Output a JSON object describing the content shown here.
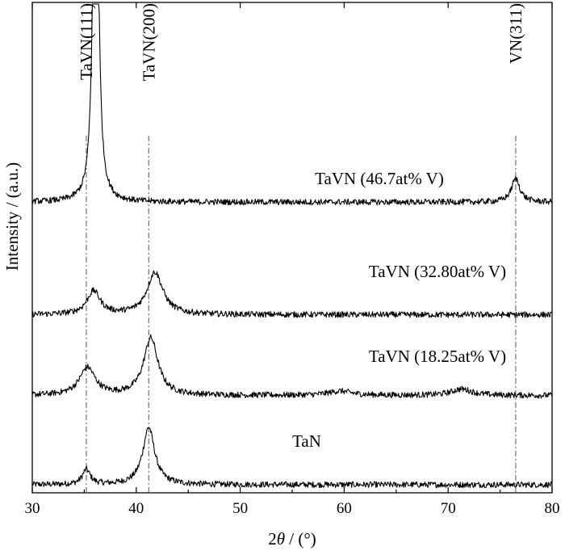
{
  "chart_data": {
    "type": "line",
    "xlabel_prefix": "2",
    "xlabel_symbol": "θ",
    "xlabel_suffix": " / (°)",
    "ylabel": "Intensity / (a.u.)",
    "xlim": [
      30,
      80
    ],
    "x_ticks": [
      30,
      40,
      50,
      60,
      70,
      80
    ],
    "y_ticks_shown": false,
    "grid": false,
    "legend": "none",
    "series": [
      {
        "name": "TaN",
        "label": "TaN",
        "offset": 0.0,
        "peaks": [
          {
            "x": 35.2,
            "height": 0.07,
            "width": 0.5
          },
          {
            "x": 41.2,
            "height": 0.27,
            "width": 0.75
          }
        ]
      },
      {
        "name": "TaVN (18.25at% V)",
        "label": "TaVN (18.25at% V)",
        "offset": 0.42,
        "peaks": [
          {
            "x": 35.3,
            "height": 0.13,
            "width": 1.0
          },
          {
            "x": 41.4,
            "height": 0.27,
            "width": 0.9
          },
          {
            "x": 59.6,
            "height": 0.02,
            "width": 1.5
          },
          {
            "x": 71.3,
            "height": 0.03,
            "width": 1.3
          }
        ]
      },
      {
        "name": "TaVN (32.80at% V)",
        "label": "TaVN (32.80at% V)",
        "offset": 0.8,
        "peaks": [
          {
            "x": 35.9,
            "height": 0.11,
            "width": 0.85
          },
          {
            "x": 41.8,
            "height": 0.2,
            "width": 1.0
          }
        ]
      },
      {
        "name": "TaVN (46.7at% V)",
        "label": "TaVN (46.7at% V)",
        "offset": 1.33,
        "peaks": [
          {
            "x": 36.1,
            "height": 2.5,
            "width": 0.28
          },
          {
            "x": 76.5,
            "height": 0.11,
            "width": 0.55
          }
        ]
      }
    ],
    "reference_lines": [
      {
        "x": 35.2,
        "label": "TaVN(111)"
      },
      {
        "x": 41.2,
        "label": "TaVN(200)"
      },
      {
        "x": 76.5,
        "label": "VN(311)"
      }
    ]
  }
}
